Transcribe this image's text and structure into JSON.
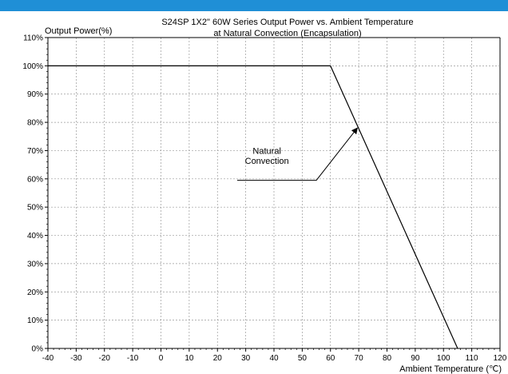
{
  "chart_data": {
    "type": "line",
    "title": "S24SP 1X2\" 60W Series Output Power vs. Ambient Temperature",
    "subtitle": "at Natural Convection (Encapsulation)",
    "xlabel": "Ambient Temperature (℃)",
    "ylabel": "Output Power(%)",
    "xlim": [
      -40,
      120
    ],
    "ylim": [
      0,
      110
    ],
    "x_ticks": [
      -40,
      -30,
      -20,
      -10,
      0,
      10,
      20,
      30,
      40,
      50,
      60,
      70,
      80,
      90,
      100,
      110,
      120
    ],
    "y_ticks": [
      0,
      10,
      20,
      30,
      40,
      50,
      60,
      70,
      80,
      90,
      100,
      110
    ],
    "y_tick_labels": [
      "0%",
      "10%",
      "20%",
      "30%",
      "40%",
      "50%",
      "60%",
      "70%",
      "80%",
      "90%",
      "100%",
      "110%"
    ],
    "grid": true,
    "series": [
      {
        "x": [
          -40,
          60,
          105
        ],
        "y": [
          100,
          100,
          0
        ],
        "color": "#000000"
      }
    ],
    "annotation": {
      "text_lines": [
        "Natural",
        "Convection"
      ],
      "leader_from": [
        27,
        59.5
      ],
      "leader_elbow": [
        55,
        59.5
      ],
      "arrow_tip": [
        69.5,
        78
      ]
    }
  }
}
